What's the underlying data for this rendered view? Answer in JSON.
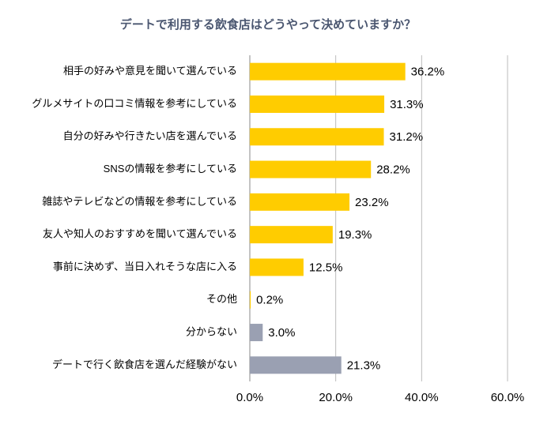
{
  "chart_data": {
    "type": "hbar",
    "title": "デートで利用する飲食店はどうやって決めていますか？",
    "categories": [
      "相手の好みや意見を聞いて選んでいる",
      "グルメサイトの口コミ情報を参考にしている",
      "自分の好みや行きたい店を選んでいる",
      "SNSの情報を参考にしている",
      "雑誌やテレビなどの情報を参考にしている",
      "友人や知人のおすすめを聞いて選んでいる",
      "事前に決めず、当日入れそうな店に入る",
      "その他",
      "分からない",
      "デートで行く飲食店を選んだ経験がない"
    ],
    "values": [
      36.2,
      31.3,
      31.2,
      28.2,
      23.2,
      19.3,
      12.5,
      0.2,
      3.0,
      21.3
    ],
    "value_labels": [
      "36.2%",
      "31.3%",
      "31.2%",
      "28.2%",
      "23.2%",
      "19.3%",
      "12.5%",
      "0.2%",
      "3.0%",
      "21.3%"
    ],
    "colors": [
      "#ffcc00",
      "#ffcc00",
      "#ffcc00",
      "#ffcc00",
      "#ffcc00",
      "#ffcc00",
      "#ffcc00",
      "#ffcc00",
      "#9aa0b2",
      "#9aa0b2"
    ],
    "xlim": [
      0,
      60
    ],
    "xticks": [
      {
        "value": 0,
        "label": "0.0%"
      },
      {
        "value": 20,
        "label": "20.0%"
      },
      {
        "value": 40,
        "label": "40.0%"
      },
      {
        "value": 60,
        "label": "60.0%"
      }
    ],
    "grid": true
  }
}
